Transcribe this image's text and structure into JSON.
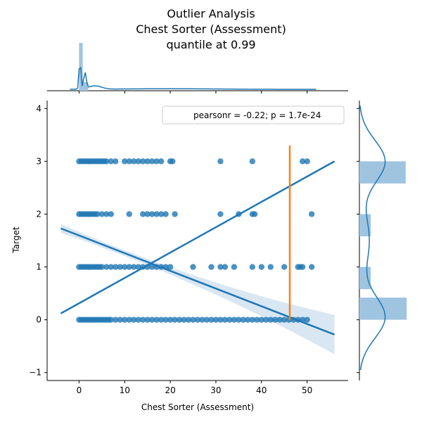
{
  "title_lines": [
    "Outlier Analysis",
    "Chest Sorter (Assessment)",
    "quantile at 0.99"
  ],
  "colors": {
    "points": "#1f77b4",
    "regression": "#1f77b4",
    "ci_band": "#b9d3ea",
    "quantile_line": "#ff7f0e",
    "marginal_bar": "#9fc4e0"
  },
  "chart_data": {
    "type": "scatter",
    "xlabel": "Chest Sorter (Assessment)",
    "ylabel": "Target",
    "xlim": [
      -7,
      59
    ],
    "ylim": [
      -1.15,
      4.15
    ],
    "x_ticks": [
      0,
      10,
      20,
      30,
      40,
      50
    ],
    "y_ticks": [
      -1,
      0,
      1,
      2,
      3,
      4
    ],
    "legend": {
      "text": "pearsonr = -0.22; p = 1.7e-24",
      "placement": "top-right"
    },
    "series": [
      {
        "y": 0,
        "x": [
          0,
          0.5,
          1,
          1.5,
          2,
          2.5,
          3,
          3.5,
          4,
          4.5,
          5,
          5.5,
          6,
          6.5,
          7,
          8,
          9,
          10,
          11,
          12,
          13,
          14,
          15,
          16,
          17,
          18,
          19,
          20,
          21,
          22,
          23,
          24,
          25,
          26,
          27,
          28,
          29,
          30,
          31,
          32,
          33,
          34,
          35,
          36,
          37,
          38,
          39,
          40,
          41,
          42,
          43,
          44,
          45,
          46,
          47,
          48,
          49,
          50
        ]
      },
      {
        "y": 1,
        "x": [
          0,
          0.5,
          1,
          1.5,
          2,
          2.5,
          3,
          3.5,
          4,
          4.5,
          5,
          6,
          7,
          8,
          9,
          10,
          11,
          12,
          13,
          14,
          15,
          16,
          17,
          18,
          19,
          20,
          25,
          29,
          31,
          32,
          34,
          38,
          40,
          42,
          45,
          48,
          48.5,
          49,
          51
        ]
      },
      {
        "y": 2,
        "x": [
          0,
          0.5,
          1,
          1.5,
          2,
          2.5,
          3,
          3.5,
          4,
          5,
          6,
          7,
          11,
          14,
          15,
          16,
          17,
          18,
          19,
          21,
          31,
          35,
          38,
          38.5,
          51
        ]
      },
      {
        "y": 3,
        "x": [
          0,
          0.5,
          1,
          1.5,
          2,
          2.5,
          3,
          3.5,
          4,
          4.5,
          5,
          5.5,
          6,
          7,
          8,
          10,
          11,
          12,
          13,
          14,
          15,
          16,
          17,
          18,
          20,
          20.5,
          31,
          38,
          49,
          50
        ]
      }
    ],
    "regression_upper": {
      "x": [
        -4,
        56
      ],
      "y": [
        1.73,
        -0.28
      ]
    },
    "regression_lower": {
      "x": [
        -4,
        56
      ],
      "y": [
        0.12,
        3.0
      ]
    },
    "quantile_line": {
      "x": 46.2,
      "y": [
        0,
        3.3
      ]
    },
    "marginal_x": {
      "bars": [
        {
          "x": [
            0,
            0.8
          ],
          "height": 1.0
        },
        {
          "x": [
            0.8,
            2
          ],
          "height": 0.18
        }
      ]
    },
    "marginal_y": {
      "bars": [
        {
          "y": [
            2.58,
            3.0
          ],
          "width": 0.94
        },
        {
          "y": [
            1.58,
            2.0
          ],
          "width": 0.23
        },
        {
          "y": [
            0.58,
            1.0
          ],
          "width": 0.23
        },
        {
          "y": [
            0,
            0.42
          ],
          "width": 0.96
        }
      ]
    }
  }
}
